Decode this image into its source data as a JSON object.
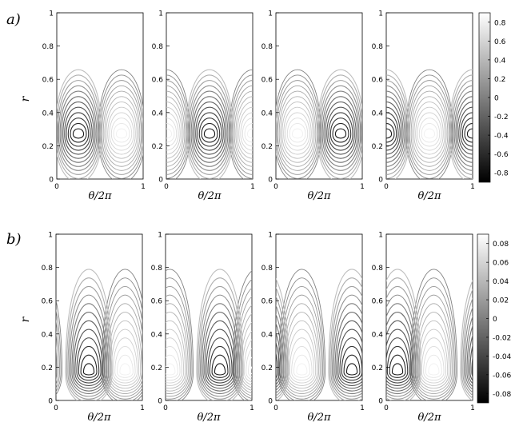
{
  "chart_data": [
    {
      "type": "contour",
      "panel_label": "a)",
      "ylabel": "r",
      "xlabel": "θ/2π",
      "xlim": [
        0,
        1
      ],
      "ylim": [
        0,
        1
      ],
      "x_ticks": [
        "0",
        "1"
      ],
      "y_ticks": [
        "0",
        "0.2",
        "0.4",
        "0.6",
        "0.8",
        "1"
      ],
      "subplots": 4,
      "colorbar": {
        "range": [
          -0.9,
          0.9
        ],
        "ticks": [
          "0.8",
          "0.6",
          "0.4",
          "0.2",
          "0",
          "-0.2",
          "-0.4",
          "-0.6",
          "-0.8"
        ]
      },
      "levels": 12,
      "cells": [
        {
          "dark_center_x": 0.25,
          "light_center_x": 0.75,
          "center_r": 0.27,
          "outer_r": 0.74
        },
        {
          "dark_center_x": 0.5,
          "light_center_x": 0.0,
          "center_r": 0.27,
          "outer_r": 0.74
        },
        {
          "dark_center_x": 0.75,
          "light_center_x": 0.25,
          "center_r": 0.27,
          "outer_r": 0.74
        },
        {
          "dark_center_x": 0.0,
          "light_center_x": 0.5,
          "center_r": 0.27,
          "outer_r": 0.74
        }
      ]
    },
    {
      "type": "contour",
      "panel_label": "b)",
      "ylabel": "r",
      "xlabel": "θ/2π",
      "xlim": [
        0,
        1
      ],
      "ylim": [
        0,
        1
      ],
      "x_ticks": [
        "0",
        "1"
      ],
      "y_ticks": [
        "0",
        "0.2",
        "0.4",
        "0.6",
        "0.8",
        "1"
      ],
      "subplots": 4,
      "colorbar": {
        "range": [
          -0.09,
          0.09
        ],
        "ticks": [
          "0.08",
          "0.06",
          "0.04",
          "0.02",
          "0",
          "-0.02",
          "-0.04",
          "-0.06",
          "-0.08"
        ]
      },
      "levels": 12,
      "cells": [
        {
          "dark_center_x": 0.38,
          "light_center_x": 0.8,
          "center_r": 0.17,
          "outer_r": 0.92
        },
        {
          "dark_center_x": 0.63,
          "light_center_x": 0.05,
          "center_r": 0.17,
          "outer_r": 0.92
        },
        {
          "dark_center_x": 0.88,
          "light_center_x": 0.3,
          "center_r": 0.17,
          "outer_r": 0.92
        },
        {
          "dark_center_x": 0.13,
          "light_center_x": 0.55,
          "center_r": 0.17,
          "outer_r": 0.92
        }
      ]
    }
  ]
}
